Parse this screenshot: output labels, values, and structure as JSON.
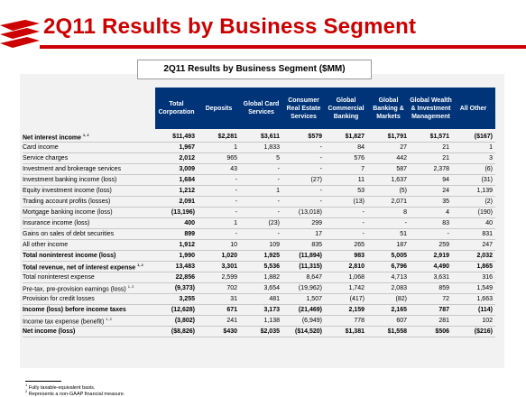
{
  "title": "2Q11 Results by Business Segment",
  "caption": "2Q11 Results by Business Segment ($MM)",
  "columns": [
    "Total Corporation",
    "Deposits",
    "Global Card Services",
    "Consumer Real Estate Services",
    "Global Commercial Banking",
    "Global Banking & Markets",
    "Global Wealth & Investment Management",
    "All Other"
  ],
  "rows": [
    {
      "label": "Net interest income",
      "sup": "1, 2",
      "bold": true,
      "values": [
        "$11,493",
        "$2,281",
        "$3,611",
        "$579",
        "$1,827",
        "$1,791",
        "$1,571",
        "($167)"
      ]
    },
    {
      "label": "Card income",
      "sup": "",
      "bold": false,
      "values": [
        "1,967",
        "1",
        "1,833",
        "-",
        "84",
        "27",
        "21",
        "1"
      ]
    },
    {
      "label": "Service charges",
      "sup": "",
      "bold": false,
      "values": [
        "2,012",
        "965",
        "5",
        "-",
        "576",
        "442",
        "21",
        "3"
      ]
    },
    {
      "label": "Investment and brokerage services",
      "sup": "",
      "bold": false,
      "values": [
        "3,009",
        "43",
        "-",
        "-",
        "7",
        "587",
        "2,378",
        "(6)"
      ]
    },
    {
      "label": "Investment banking income (loss)",
      "sup": "",
      "bold": false,
      "values": [
        "1,684",
        "-",
        "-",
        "(27)",
        "11",
        "1,637",
        "94",
        "(31)"
      ]
    },
    {
      "label": "Equity investment income (loss)",
      "sup": "",
      "bold": false,
      "values": [
        "1,212",
        "-",
        "1",
        "-",
        "53",
        "(5)",
        "24",
        "1,139"
      ]
    },
    {
      "label": "Trading account profits (losses)",
      "sup": "",
      "bold": false,
      "values": [
        "2,091",
        "-",
        "-",
        "-",
        "(13)",
        "2,071",
        "35",
        "(2)"
      ]
    },
    {
      "label": "Mortgage banking income (loss)",
      "sup": "",
      "bold": false,
      "values": [
        "(13,196)",
        "-",
        "-",
        "(13,018)",
        "-",
        "8",
        "4",
        "(190)"
      ]
    },
    {
      "label": "Insurance income (loss)",
      "sup": "",
      "bold": false,
      "values": [
        "400",
        "1",
        "(23)",
        "299",
        "-",
        "-",
        "83",
        "40"
      ]
    },
    {
      "label": "Gains on sales of debt securities",
      "sup": "",
      "bold": false,
      "values": [
        "899",
        "-",
        "-",
        "17",
        "-",
        "51",
        "-",
        "831"
      ]
    },
    {
      "label": "All other income",
      "sup": "",
      "bold": false,
      "values": [
        "1,912",
        "10",
        "109",
        "835",
        "265",
        "187",
        "259",
        "247"
      ]
    },
    {
      "label": "Total noninterest income (loss)",
      "sup": "",
      "bold": true,
      "values": [
        "1,990",
        "1,020",
        "1,925",
        "(11,894)",
        "983",
        "5,005",
        "2,919",
        "2,032"
      ]
    },
    {
      "label": "Total revenue, net of interest expense",
      "sup": "1, 2",
      "bold": true,
      "values": [
        "13,483",
        "3,301",
        "5,536",
        "(11,315)",
        "2,810",
        "6,796",
        "4,490",
        "1,865"
      ]
    },
    {
      "label": "Total noninterest expense",
      "sup": "",
      "bold": false,
      "values": [
        "22,856",
        "2,599",
        "1,882",
        "8,647",
        "1,068",
        "4,713",
        "3,631",
        "316"
      ]
    },
    {
      "label": "Pre-tax, pre-provision earnings (loss)",
      "sup": "1, 2",
      "bold": false,
      "values": [
        "(9,373)",
        "702",
        "3,654",
        "(19,962)",
        "1,742",
        "2,083",
        "859",
        "1,549"
      ]
    },
    {
      "label": "Provision for credit losses",
      "sup": "",
      "bold": false,
      "values": [
        "3,255",
        "31",
        "481",
        "1,507",
        "(417)",
        "(82)",
        "72",
        "1,663"
      ]
    },
    {
      "label": "Income (loss) before income taxes",
      "sup": "",
      "bold": true,
      "values": [
        "(12,628)",
        "671",
        "3,173",
        "(21,469)",
        "2,159",
        "2,165",
        "787",
        "(114)"
      ]
    },
    {
      "label": "Income tax expense (benefit)",
      "sup": "1, 2",
      "bold": false,
      "values": [
        "(3,802)",
        "241",
        "1,138",
        "(6,949)",
        "778",
        "607",
        "281",
        "102"
      ]
    },
    {
      "label": "Net income (loss)",
      "sup": "",
      "bold": true,
      "values": [
        "($8,826)",
        "$430",
        "$2,035",
        "($14,520)",
        "$1,381",
        "$1,558",
        "$506",
        "($216)"
      ]
    }
  ],
  "footnotes": [
    {
      "mark": "1",
      "text": "Fully taxable-equivalent basis."
    },
    {
      "mark": "2",
      "text": "Represents a non-GAAP financial measure."
    }
  ],
  "colors": {
    "accent": "#cc0000",
    "header": "#003479",
    "panel": "#f2f2f2"
  }
}
